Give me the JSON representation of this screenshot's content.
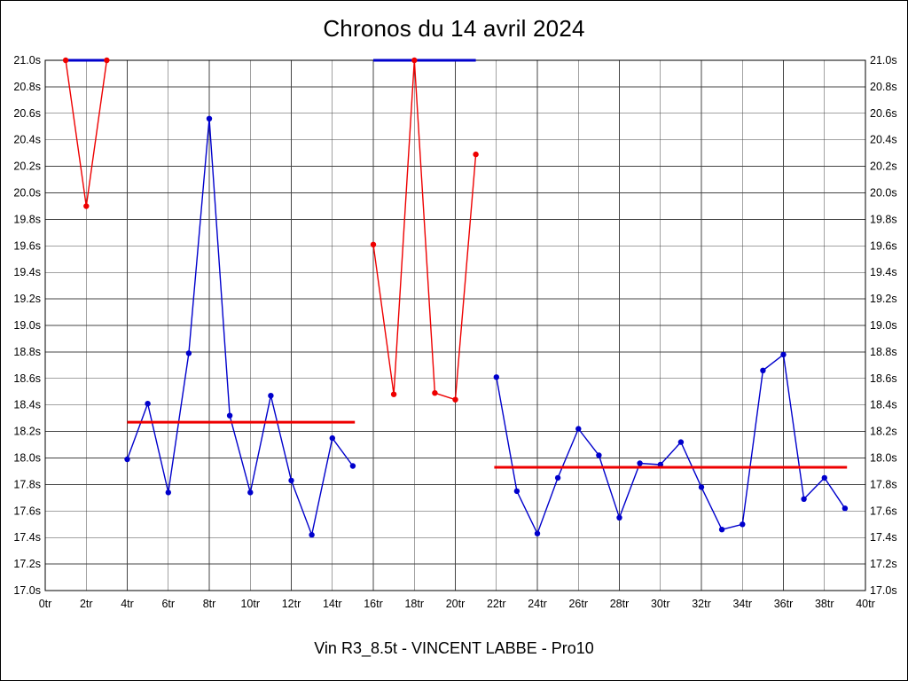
{
  "title": "Chronos du 14 avril 2024",
  "footer": "Vin R3_8.5t - VINCENT LABBE - Pro10",
  "chart_data": {
    "type": "line",
    "title": "Chronos du 14 avril 2024",
    "subtitle": "Vin R3_8.5t - VINCENT LABBE - Pro10",
    "xlabel": "",
    "ylabel": "",
    "x_tick_suffix": "tr",
    "y_tick_suffix": "s",
    "xlim": [
      0,
      40
    ],
    "ylim": [
      17.0,
      21.0
    ],
    "x_ticks": [
      0,
      2,
      4,
      6,
      8,
      10,
      12,
      14,
      16,
      18,
      20,
      22,
      24,
      26,
      28,
      30,
      32,
      34,
      36,
      38,
      40
    ],
    "y_ticks": [
      17.0,
      17.2,
      17.4,
      17.6,
      17.8,
      18.0,
      18.2,
      18.4,
      18.6,
      18.8,
      19.0,
      19.2,
      19.4,
      19.6,
      19.8,
      20.0,
      20.2,
      20.4,
      20.6,
      20.8,
      21.0
    ],
    "grid": true,
    "grid_color": "#444444",
    "legend": "none",
    "y_axis_labels_on_both_sides": true,
    "colors": {
      "blue": "#0000cc",
      "red": "#ee0000"
    },
    "series": [
      {
        "name": "blue-cap-start",
        "color": "blue",
        "marker": false,
        "width": 3,
        "x": [
          1,
          3
        ],
        "y": [
          21.0,
          21.0
        ]
      },
      {
        "name": "red-out-laps-start",
        "color": "red",
        "marker": true,
        "width": 1.4,
        "x": [
          1,
          2,
          3
        ],
        "y": [
          21.0,
          19.9,
          21.0
        ]
      },
      {
        "name": "blue-stint-1",
        "color": "blue",
        "marker": true,
        "width": 1.4,
        "x": [
          4,
          5,
          6,
          7,
          8,
          9,
          10,
          11,
          12,
          13,
          14,
          15
        ],
        "y": [
          17.99,
          18.41,
          17.74,
          18.79,
          20.56,
          18.32,
          17.74,
          18.47,
          17.83,
          17.42,
          18.15,
          17.94
        ]
      },
      {
        "name": "red-average-stint-1",
        "color": "red",
        "marker": false,
        "width": 3,
        "x": [
          4,
          15.1
        ],
        "y": [
          18.27,
          18.27
        ]
      },
      {
        "name": "blue-cap-middle",
        "color": "blue",
        "marker": false,
        "width": 3,
        "x": [
          16,
          21
        ],
        "y": [
          21.0,
          21.0
        ]
      },
      {
        "name": "red-out-laps-middle",
        "color": "red",
        "marker": true,
        "width": 1.4,
        "x": [
          16,
          17,
          18,
          19,
          20,
          21
        ],
        "y": [
          19.61,
          18.48,
          21.0,
          18.49,
          18.44,
          20.29
        ]
      },
      {
        "name": "blue-stint-2",
        "color": "blue",
        "marker": true,
        "width": 1.4,
        "x": [
          22,
          23,
          24,
          25,
          26,
          27,
          28,
          29,
          30,
          31,
          32,
          33,
          34,
          35,
          36,
          37,
          38,
          39
        ],
        "y": [
          18.61,
          17.75,
          17.43,
          17.85,
          18.22,
          18.02,
          17.55,
          17.96,
          17.95,
          18.12,
          17.78,
          17.46,
          17.5,
          18.66,
          18.78,
          17.69,
          17.85,
          17.62
        ]
      },
      {
        "name": "red-average-stint-2",
        "color": "red",
        "marker": false,
        "width": 3,
        "x": [
          21.9,
          39.1
        ],
        "y": [
          17.93,
          17.93
        ]
      }
    ]
  }
}
